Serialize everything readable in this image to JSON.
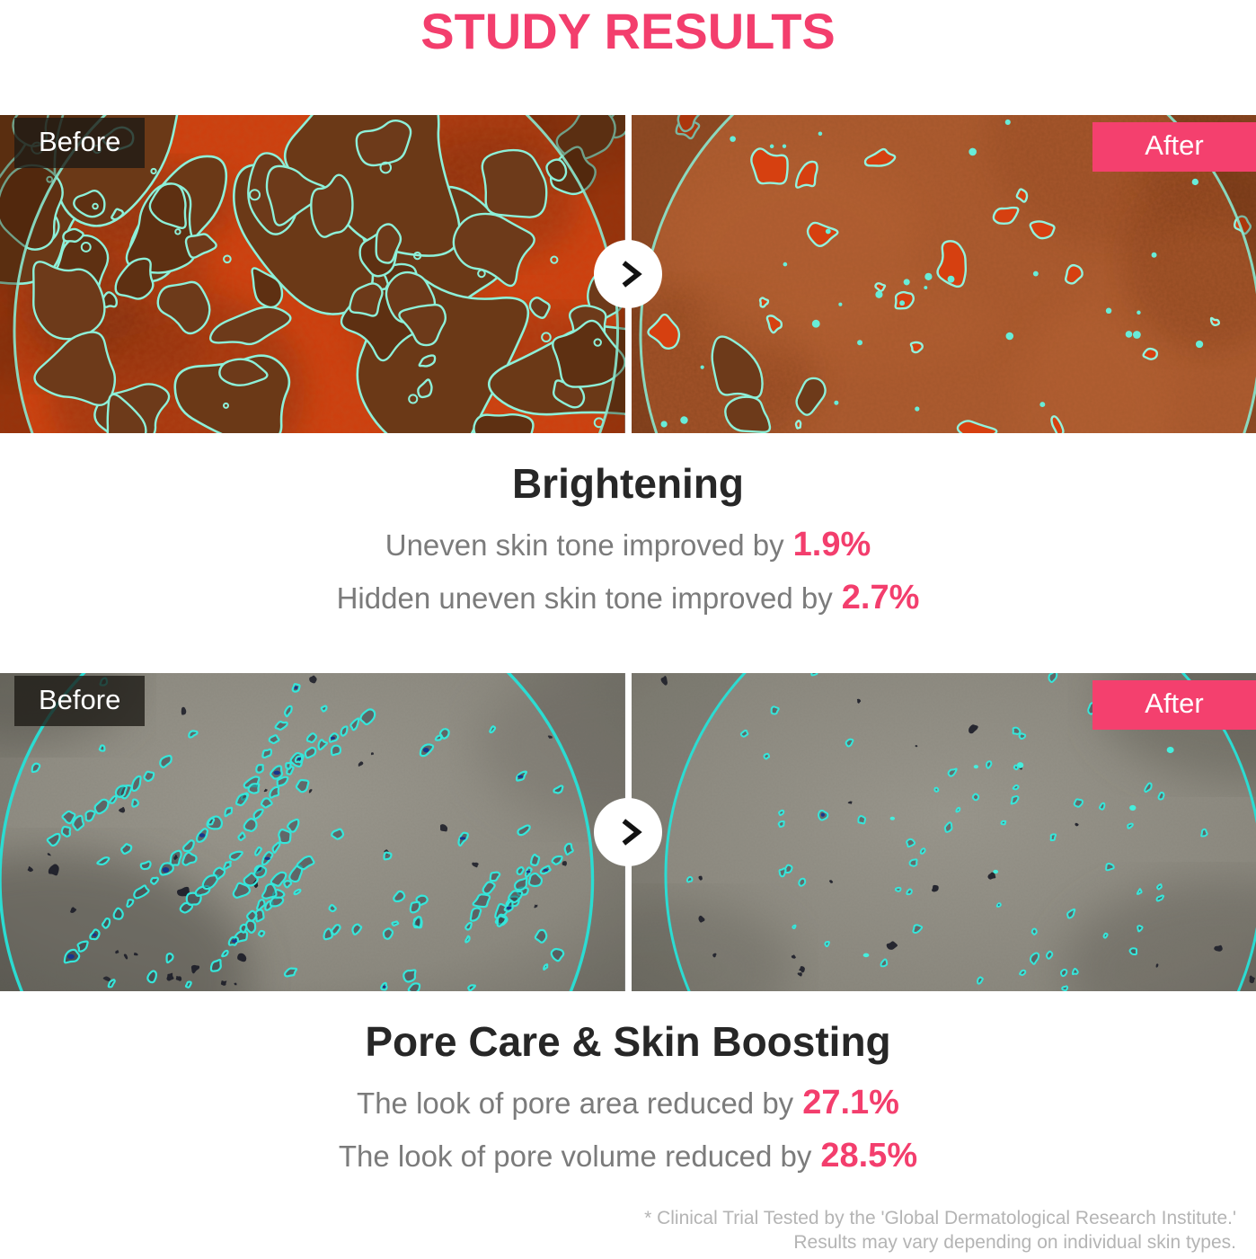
{
  "title": "STUDY RESULTS",
  "colors": {
    "accent_pink": "#f33e6d",
    "after_badge_bg": "#f4406e",
    "before_badge_bg": "rgba(28,25,20,0.78)",
    "heading_dark": "#272727",
    "body_gray": "#7b7b7b",
    "footnote_gray": "#b4b4b4",
    "contour_cyan_row1": "#8df0d8",
    "contour_cyan_row2": "#2fe2d6"
  },
  "icons": {
    "arrow": "chevron-right"
  },
  "sections": [
    {
      "id": "brightening",
      "before_label": "Before",
      "after_label": "After",
      "heading": "Brightening",
      "stats": [
        {
          "text": "Uneven skin tone improved by",
          "value": "1.9%"
        },
        {
          "text": "Hidden uneven skin tone improved by",
          "value": "2.7%"
        }
      ]
    },
    {
      "id": "pore-care",
      "before_label": "Before",
      "after_label": "After",
      "heading": "Pore Care & Skin Boosting",
      "stats": [
        {
          "text": "The look of pore area reduced by",
          "value": "27.1%"
        },
        {
          "text": "The look of pore volume reduced by",
          "value": "28.5%"
        }
      ]
    }
  ],
  "footnote": {
    "line1": "* Clinical Trial Tested by the 'Global Dermatological Research Institute.'",
    "line2": "Results may vary depending on individual skin types."
  }
}
